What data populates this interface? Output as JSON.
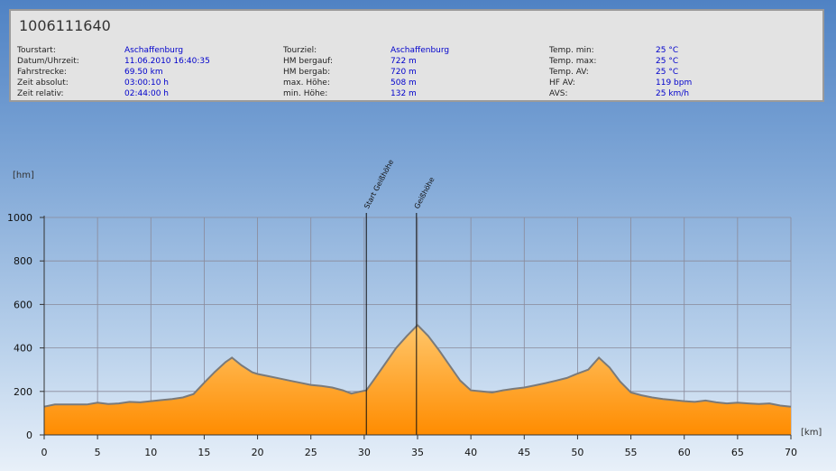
{
  "info": {
    "id": "1006111640",
    "columns": [
      [
        {
          "label": "Tourstart:",
          "value": "Aschaffenburg"
        },
        {
          "label": "Datum/Uhrzeit:",
          "value": "11.06.2010 16:40:35"
        },
        {
          "label": "Fahrstrecke:",
          "value": "69.50 km"
        },
        {
          "label": "Zeit absolut:",
          "value": "03:00:10 h"
        },
        {
          "label": "Zeit relativ:",
          "value": "02:44:00 h"
        }
      ],
      [
        {
          "label": "Tourziel:",
          "value": "Aschaffenburg"
        },
        {
          "label": "HM bergauf:",
          "value": "722 m"
        },
        {
          "label": "HM bergab:",
          "value": "720 m"
        },
        {
          "label": "max. Höhe:",
          "value": "508 m"
        },
        {
          "label": "min. Höhe:",
          "value": "132 m"
        }
      ],
      [
        {
          "label": "Temp. min:",
          "value": "25 °C"
        },
        {
          "label": "Temp. max:",
          "value": "25 °C"
        },
        {
          "label": "Temp. AV:",
          "value": "25 °C"
        },
        {
          "label": "HF AV:",
          "value": "119 bpm"
        },
        {
          "label": "AVS:",
          "value": "25 km/h"
        }
      ]
    ]
  },
  "colors": {
    "fill_top": "#ffc66a",
    "fill_bottom": "#ff8c00",
    "line": "#7a7a7a",
    "grid": "#8a8a9a"
  },
  "chart_data": {
    "type": "area",
    "xlabel": "[km]",
    "ylabel": "[hm]",
    "xlim": [
      0,
      70
    ],
    "ylim": [
      0,
      1000
    ],
    "xticks": [
      0,
      5,
      10,
      15,
      20,
      25,
      30,
      35,
      40,
      45,
      50,
      55,
      60,
      65,
      70
    ],
    "yticks": [
      0,
      200,
      400,
      600,
      800,
      1000
    ],
    "grid": true,
    "series": [
      {
        "x": [
          0,
          1,
          2,
          4,
          5,
          6,
          7,
          8,
          9,
          10,
          11,
          12,
          13,
          14,
          15,
          16,
          17,
          17.6,
          18.5,
          19.5,
          20,
          21,
          22,
          23,
          24,
          25,
          26,
          27,
          28,
          28.8,
          29.5,
          30.2,
          31,
          32,
          33,
          34,
          35,
          36,
          37,
          38,
          39,
          40,
          41,
          42,
          43,
          44,
          45,
          46,
          47,
          48,
          49,
          50,
          51,
          52,
          53,
          54,
          55,
          56,
          57,
          58,
          59,
          60,
          61,
          62,
          63,
          64,
          65,
          66,
          67,
          68,
          69,
          70
        ],
        "y": [
          130,
          140,
          140,
          140,
          148,
          142,
          145,
          152,
          150,
          155,
          160,
          165,
          172,
          188,
          240,
          290,
          335,
          355,
          320,
          288,
          280,
          270,
          260,
          250,
          240,
          230,
          225,
          218,
          205,
          190,
          198,
          205,
          260,
          330,
          400,
          455,
          505,
          455,
          390,
          320,
          250,
          205,
          200,
          195,
          205,
          212,
          218,
          228,
          238,
          250,
          262,
          282,
          300,
          355,
          310,
          245,
          195,
          182,
          172,
          165,
          160,
          155,
          152,
          158,
          150,
          145,
          148,
          145,
          142,
          145,
          135,
          130
        ]
      }
    ],
    "markers": [
      {
        "label": "Start Geißhöhe",
        "x": 30.2
      },
      {
        "label": "Geißhöhe",
        "x": 34.9
      }
    ]
  }
}
